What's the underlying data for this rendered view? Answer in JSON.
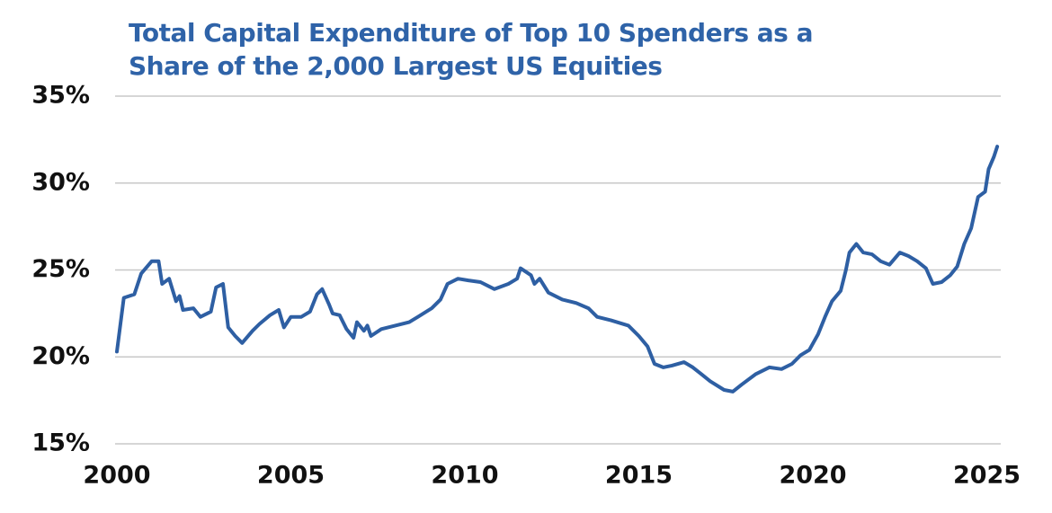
{
  "chart_data": {
    "type": "line",
    "title": "Total Capital Expenditure of Top 10 Spenders as a Share of the 2,000 Largest US Equities",
    "color": "#2e5fa3",
    "x": [
      2000.0,
      2000.2,
      2000.5,
      2000.7,
      2001.0,
      2001.2,
      2001.3,
      2001.5,
      2001.7,
      2001.8,
      2001.9,
      2002.2,
      2002.4,
      2002.7,
      2002.85,
      2003.05,
      2003.2,
      2003.4,
      2003.6,
      2003.9,
      2004.1,
      2004.4,
      2004.65,
      2004.8,
      2005.0,
      2005.3,
      2005.55,
      2005.75,
      2005.9,
      2006.1,
      2006.2,
      2006.4,
      2006.6,
      2006.8,
      2006.9,
      2007.1,
      2007.2,
      2007.3,
      2007.6,
      2008.0,
      2008.4,
      2008.65,
      2009.05,
      2009.3,
      2009.5,
      2009.8,
      2010.1,
      2010.45,
      2010.85,
      2011.25,
      2011.5,
      2011.6,
      2011.9,
      2012.0,
      2012.15,
      2012.4,
      2012.8,
      2013.2,
      2013.55,
      2013.8,
      2014.2,
      2014.7,
      2015.0,
      2015.25,
      2015.45,
      2015.7,
      2015.95,
      2016.3,
      2016.55,
      2016.8,
      2017.05,
      2017.45,
      2017.7,
      2017.95,
      2018.35,
      2018.75,
      2019.1,
      2019.4,
      2019.65,
      2019.9,
      2020.15,
      2020.35,
      2020.55,
      2020.8,
      2020.95,
      2021.05,
      2021.25,
      2021.45,
      2021.7,
      2021.95,
      2022.2,
      2022.5,
      2022.75,
      2023.0,
      2023.25,
      2023.45,
      2023.7,
      2023.95,
      2024.15,
      2024.35,
      2024.55,
      2024.75,
      2024.95,
      2025.05,
      2025.2,
      2025.3
    ],
    "values": [
      20.3,
      23.4,
      23.6,
      24.8,
      25.5,
      25.5,
      24.2,
      24.5,
      23.2,
      23.5,
      22.7,
      22.8,
      22.3,
      22.6,
      24.0,
      24.2,
      21.7,
      21.2,
      20.8,
      21.5,
      21.9,
      22.4,
      22.7,
      21.7,
      22.3,
      22.3,
      22.6,
      23.6,
      23.9,
      23.0,
      22.5,
      22.4,
      21.6,
      21.1,
      22.0,
      21.5,
      21.8,
      21.2,
      21.6,
      21.8,
      22.0,
      22.3,
      22.8,
      23.3,
      24.2,
      24.5,
      24.4,
      24.3,
      23.9,
      24.2,
      24.5,
      25.1,
      24.7,
      24.2,
      24.5,
      23.7,
      23.3,
      23.1,
      22.8,
      22.3,
      22.1,
      21.8,
      21.2,
      20.6,
      19.6,
      19.4,
      19.5,
      19.7,
      19.4,
      19.0,
      18.6,
      18.1,
      18.0,
      18.4,
      19.0,
      19.4,
      19.3,
      19.6,
      20.1,
      20.4,
      21.3,
      22.3,
      23.2,
      23.8,
      25.0,
      26.0,
      26.5,
      26.0,
      25.9,
      25.5,
      25.3,
      26.0,
      25.8,
      25.5,
      25.1,
      24.2,
      24.3,
      24.7,
      25.2,
      26.5,
      27.4,
      29.2,
      29.5,
      30.8,
      31.5,
      32.1
    ],
    "xlim": [
      2000,
      2025.4
    ],
    "xticks": [
      2000,
      2005,
      2010,
      2015,
      2020,
      2025
    ],
    "ylim": [
      15,
      35
    ],
    "yticks": [
      {
        "value": 15,
        "label": "15%"
      },
      {
        "value": 20,
        "label": "20%"
      },
      {
        "value": 25,
        "label": "25%"
      },
      {
        "value": 30,
        "label": "30%"
      },
      {
        "value": 35,
        "label": "35%"
      }
    ],
    "grid": true
  }
}
